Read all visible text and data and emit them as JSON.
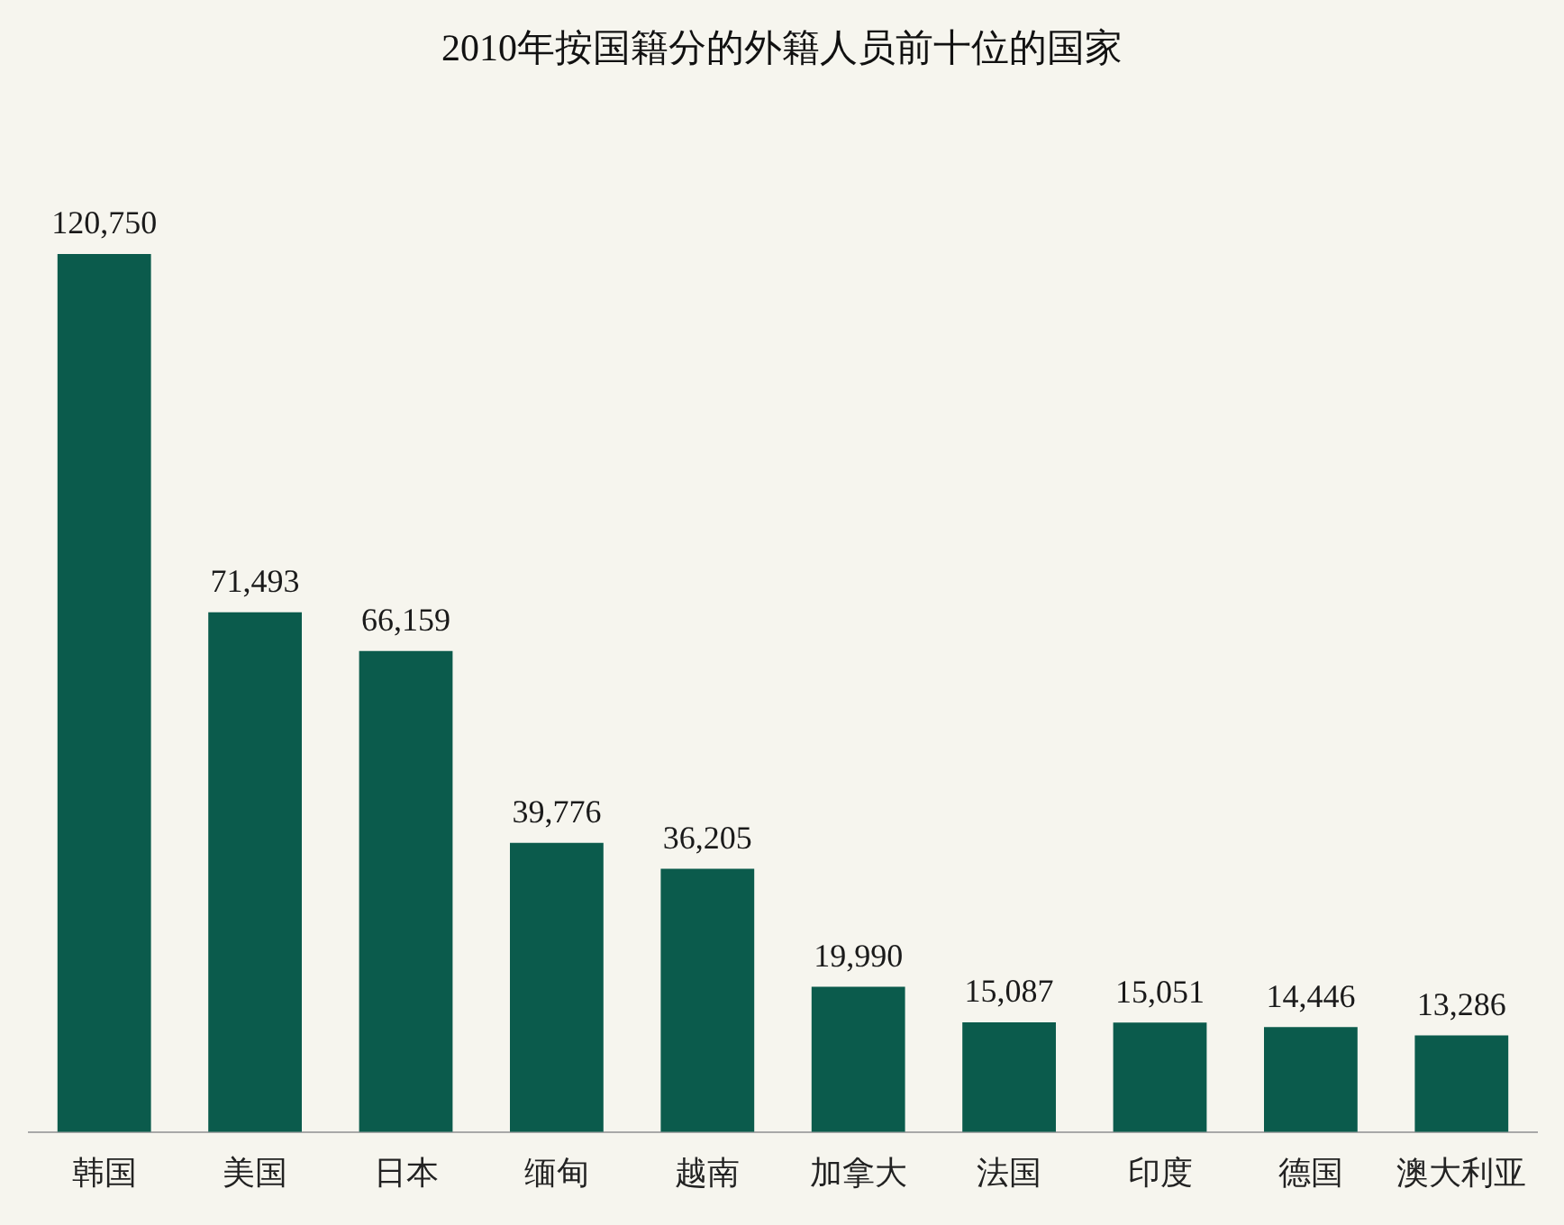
{
  "chart_data": {
    "type": "bar",
    "title": "2010年按国籍分的外籍人员前十位的国家",
    "categories": [
      "韩国",
      "美国",
      "日本",
      "缅甸",
      "越南",
      "加拿大",
      "法国",
      "印度",
      "德国",
      "澳大利亚"
    ],
    "values": [
      120750,
      71493,
      66159,
      39776,
      36205,
      19990,
      15087,
      15051,
      14446,
      13286
    ],
    "value_labels": [
      "120,750",
      "71,493",
      "66,159",
      "39,776",
      "36,205",
      "19,990",
      "15,087",
      "15,051",
      "14,446",
      "13,286"
    ],
    "color": "#0b5b4c"
  }
}
